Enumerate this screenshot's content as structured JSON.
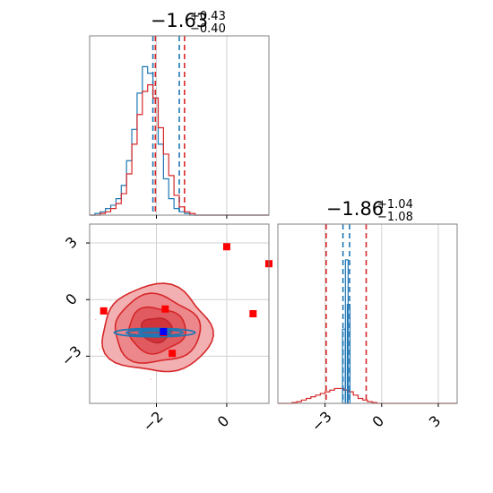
{
  "chart_data": [
    {
      "panel": "marginal-top",
      "type": "histogram",
      "parameter_summary": {
        "value": "−1.63",
        "plus": "+0.43",
        "minus": "−0.40"
      },
      "xlim": [
        -3.9,
        1.2
      ],
      "ylim": [
        0,
        1.0
      ],
      "x_ticks": [
        -2,
        0
      ],
      "y_ticks": [],
      "grid": true,
      "bin_start": -3.9,
      "bin_width": 0.15,
      "series": [
        {
          "color": "#1f77b4",
          "counts": [
            0,
            0.01,
            0.02,
            0.04,
            0.06,
            0.1,
            0.18,
            0.33,
            0.52,
            0.74,
            0.9,
            0.86,
            0.71,
            0.43,
            0.22,
            0.1,
            0.04,
            0.02,
            0.01,
            0,
            0,
            0,
            0,
            0,
            0,
            0,
            0,
            0,
            0,
            0,
            0,
            0,
            0,
            0
          ],
          "quantile_lines": [
            -2.1,
            -1.35
          ]
        },
        {
          "color": "#d62728",
          "counts": [
            0,
            0,
            0.01,
            0.02,
            0.04,
            0.07,
            0.13,
            0.25,
            0.43,
            0.61,
            0.75,
            0.79,
            0.71,
            0.53,
            0.37,
            0.24,
            0.12,
            0.05,
            0.02,
            0.01,
            0,
            0,
            0,
            0,
            0,
            0,
            0,
            0,
            0,
            0,
            0,
            0,
            0,
            0
          ],
          "quantile_lines": [
            -2.03,
            -1.2
          ]
        }
      ]
    },
    {
      "panel": "joint",
      "type": "scatter-contour",
      "xlim": [
        -3.9,
        1.2
      ],
      "ylim": [
        -5.5,
        4.0
      ],
      "x_ticks": [
        -2,
        0
      ],
      "y_ticks": [
        -3,
        0,
        3
      ],
      "x_tick_labels": [
        "−2",
        "0"
      ],
      "y_tick_labels": [
        "−3",
        "0",
        "3"
      ],
      "grid": true,
      "red_contour_center": [
        -2.0,
        -1.6
      ],
      "red_contour_radii": [
        1.55,
        2.3
      ],
      "blue_contour_center": [
        -2.05,
        -1.75
      ],
      "blue_contour_radii": [
        1.15,
        0.22
      ],
      "red_points": [
        {
          "x": 0.0,
          "y": 2.8
        },
        {
          "x": 1.2,
          "y": 1.9
        },
        {
          "x": 0.75,
          "y": -0.75
        },
        {
          "x": -3.5,
          "y": -0.6
        },
        {
          "x": -1.75,
          "y": -0.5
        },
        {
          "x": -1.55,
          "y": -2.85
        },
        {
          "x": -1.8,
          "y": -1.75
        }
      ],
      "blue_points": [
        {
          "x": -1.8,
          "y": -1.7
        }
      ]
    },
    {
      "panel": "marginal-right",
      "type": "histogram",
      "parameter_summary": {
        "value": "−1.86",
        "plus": "+1.04",
        "minus": "−1.08"
      },
      "xlim": [
        -5.5,
        4.0
      ],
      "ylim": [
        0,
        1.0
      ],
      "x_ticks": [
        -3,
        0,
        3
      ],
      "x_tick_labels": [
        "−3",
        "0",
        "3"
      ],
      "y_ticks": [],
      "grid": true,
      "bin_start": -5.5,
      "bin_width": 0.25,
      "series": [
        {
          "color": "#d62728",
          "counts": [
            0,
            0,
            0,
            0.005,
            0.01,
            0.02,
            0.03,
            0.04,
            0.05,
            0.06,
            0.07,
            0.08,
            0.09,
            0.09,
            0.08,
            0.07,
            0.05,
            0.03,
            0.02,
            0.01,
            0.005,
            0,
            0,
            0,
            0,
            0,
            0,
            0,
            0,
            0,
            0,
            0,
            0,
            0,
            0,
            0,
            0,
            0
          ],
          "quantile_lines": [
            -2.94,
            -0.82
          ]
        },
        {
          "color": "#1f77b4",
          "spike_x": [
            -2.0,
            -1.85,
            -1.75
          ],
          "spike_h": [
            0.45,
            0.87,
            0.6
          ],
          "quantile_lines": [
            -2.05,
            -1.7
          ]
        }
      ]
    }
  ]
}
